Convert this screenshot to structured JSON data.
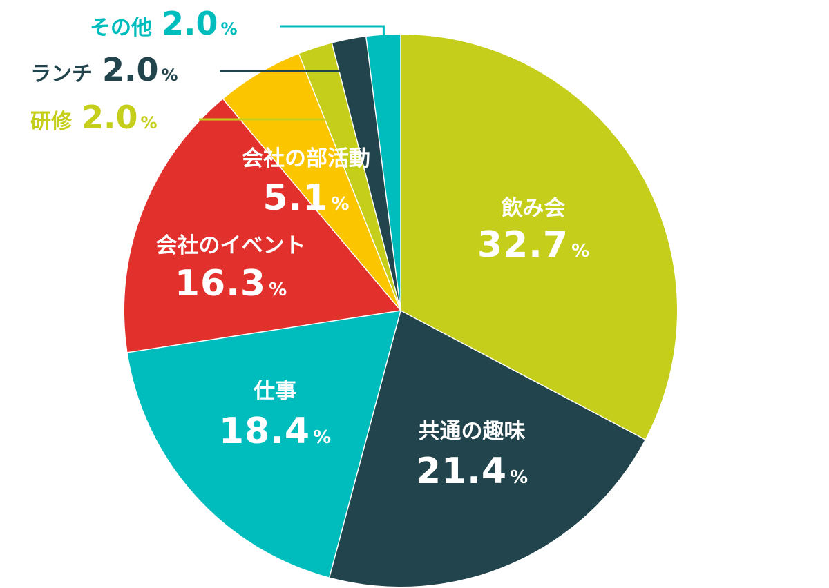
{
  "chart_data": {
    "type": "pie",
    "title": "",
    "unit": "%",
    "slices": [
      {
        "label": "飲み会",
        "value": 32.7,
        "color": "#c5cf1b",
        "text_color": "#ffffff"
      },
      {
        "label": "共通の趣味",
        "value": 21.4,
        "color": "#22444c",
        "text_color": "#ffffff"
      },
      {
        "label": "仕事",
        "value": 18.4,
        "color": "#00bdbd",
        "text_color": "#ffffff"
      },
      {
        "label": "会社のイベント",
        "value": 16.3,
        "color": "#e2312c",
        "text_color": "#ffffff"
      },
      {
        "label": "会社の部活動",
        "value": 5.1,
        "color": "#fbc500",
        "text_color": "#ffffff"
      },
      {
        "label": "研修",
        "value": 2.0,
        "color": "#c5cf1b",
        "text_color": "#c5cf1b"
      },
      {
        "label": "ランチ",
        "value": 2.0,
        "color": "#22444c",
        "text_color": "#22444c"
      },
      {
        "label": "その他",
        "value": 2.0,
        "color": "#00bdbd",
        "text_color": "#00bdbd"
      }
    ]
  }
}
